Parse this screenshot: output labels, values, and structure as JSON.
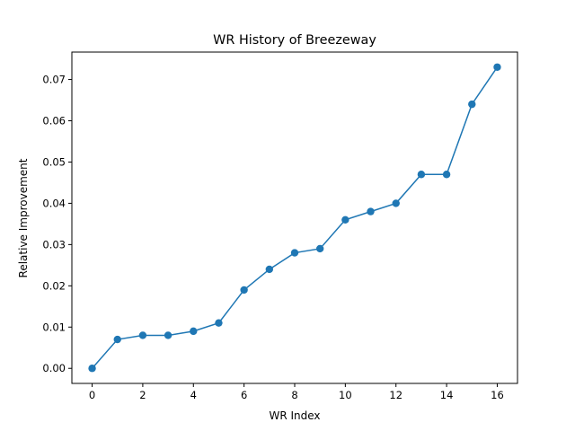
{
  "chart_data": {
    "type": "line",
    "title": "WR History of Breezeway",
    "xlabel": "WR Index",
    "ylabel": "Relative Improvement",
    "x": [
      0,
      1,
      2,
      3,
      4,
      5,
      6,
      7,
      8,
      9,
      10,
      11,
      12,
      13,
      14,
      15,
      16
    ],
    "series": [
      {
        "values": [
          0.0,
          0.007,
          0.008,
          0.008,
          0.009,
          0.011,
          0.019,
          0.024,
          0.028,
          0.029,
          0.036,
          0.038,
          0.04,
          0.047,
          0.047,
          0.064,
          0.073
        ],
        "color": "#1f77b4"
      }
    ],
    "xlim": [
      -0.8,
      16.8
    ],
    "ylim": [
      -0.00365,
      0.07665
    ],
    "xticks": [
      "0",
      "2",
      "4",
      "6",
      "8",
      "10",
      "12",
      "14",
      "16"
    ],
    "yticks": [
      "0.00",
      "0.01",
      "0.02",
      "0.03",
      "0.04",
      "0.05",
      "0.06",
      "0.07"
    ],
    "grid": false,
    "legend": "none"
  }
}
